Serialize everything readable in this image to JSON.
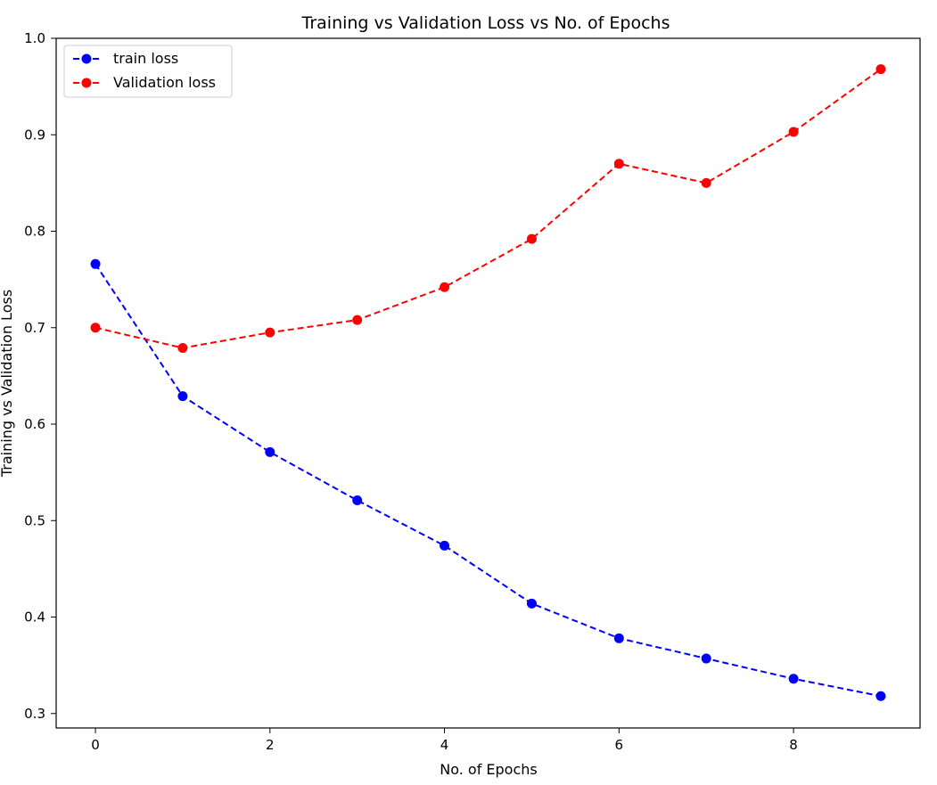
{
  "chart_data": {
    "type": "line",
    "title": "Training vs Validation Loss vs No. of Epochs",
    "xlabel": "No. of Epochs",
    "ylabel": "Training vs Validation Loss",
    "xlim": [
      -0.45,
      9.45
    ],
    "ylim": [
      0.285,
      1.0
    ],
    "xticks": [
      0,
      2,
      4,
      6,
      8
    ],
    "yticks": [
      0.3,
      0.4,
      0.5,
      0.6,
      0.7,
      0.8,
      0.9,
      1.0
    ],
    "grid": false,
    "legend_position": "upper-left",
    "x": [
      0,
      1,
      2,
      3,
      4,
      5,
      6,
      7,
      8,
      9
    ],
    "series": [
      {
        "name": "train loss",
        "color": "#0000ff",
        "linestyle": "dashed",
        "marker": "circle",
        "values": [
          0.766,
          0.629,
          0.571,
          0.521,
          0.474,
          0.414,
          0.378,
          0.357,
          0.336,
          0.318
        ]
      },
      {
        "name": "Validation loss",
        "color": "#ff0000",
        "linestyle": "dashed",
        "marker": "circle",
        "values": [
          0.7,
          0.679,
          0.695,
          0.708,
          0.742,
          0.792,
          0.87,
          0.85,
          0.903,
          0.968
        ]
      }
    ]
  }
}
